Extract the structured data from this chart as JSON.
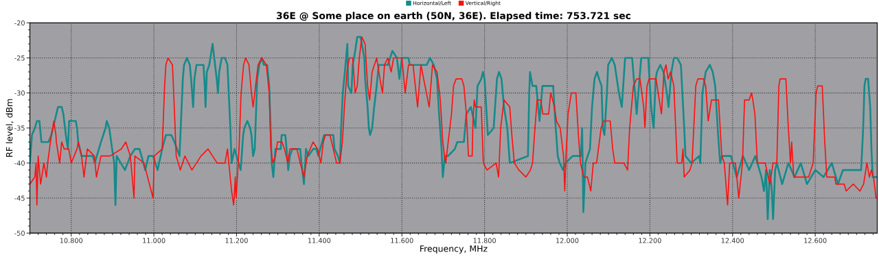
{
  "chart_data": {
    "type": "line",
    "title": "36E @ Some place on earth (50N, 36E). Elapsed time: 753.721 sec",
    "xlabel": "Frequency, MHz",
    "ylabel": "RF level, dBm",
    "xlim": [
      10.7,
      12.75
    ],
    "ylim": [
      -50,
      -20
    ],
    "xticks": [
      {
        "value": 10.8,
        "label": "10.800"
      },
      {
        "value": 11.0,
        "label": "11.000"
      },
      {
        "value": 11.2,
        "label": "11.200"
      },
      {
        "value": 11.4,
        "label": "11.400"
      },
      {
        "value": 11.6,
        "label": "11.600"
      },
      {
        "value": 11.8,
        "label": "11.800"
      },
      {
        "value": 12.0,
        "label": "12.000"
      },
      {
        "value": 12.2,
        "label": "12.200"
      },
      {
        "value": 12.4,
        "label": "12.400"
      },
      {
        "value": 12.6,
        "label": "12.600"
      }
    ],
    "yticks": [
      -50,
      -45,
      -40,
      -35,
      -30,
      -25,
      -20
    ],
    "grid": true,
    "legend": "top",
    "marker": "none",
    "line_style": "solid",
    "series": [
      {
        "name": "Horizontal/Left",
        "color": "#168a8a",
        "x": [
          10.7,
          10.705,
          10.712,
          10.717,
          10.723,
          10.728,
          10.737,
          10.745,
          10.752,
          10.764,
          10.768,
          10.777,
          10.781,
          10.787,
          10.792,
          10.795,
          10.811,
          10.814,
          10.817,
          10.825,
          10.852,
          10.857,
          10.872,
          10.883,
          10.886,
          10.892,
          10.899,
          10.904,
          10.907,
          10.91,
          10.93,
          10.943,
          10.954,
          10.965,
          10.97,
          10.979,
          10.987,
          10.998,
          11.009,
          11.02,
          11.029,
          11.042,
          11.05,
          11.056,
          11.062,
          11.07,
          11.073,
          11.08,
          11.087,
          11.09,
          11.095,
          11.098,
          11.103,
          11.12,
          11.123,
          11.125,
          11.128,
          11.134,
          11.142,
          11.148,
          11.152,
          11.155,
          11.158,
          11.164,
          11.172,
          11.178,
          11.185,
          11.188,
          11.195,
          11.205,
          11.21,
          11.216,
          11.219,
          11.226,
          11.233,
          11.236,
          11.24,
          11.244,
          11.25,
          11.255,
          11.261,
          11.266,
          11.274,
          11.279,
          11.283,
          11.285,
          11.289,
          11.294,
          11.307,
          11.309,
          11.318,
          11.321,
          11.325,
          11.329,
          11.335,
          11.354,
          11.357,
          11.363,
          11.368,
          11.374,
          11.385,
          11.393,
          11.398,
          11.407,
          11.412,
          11.434,
          11.437,
          11.445,
          11.45,
          11.453,
          11.457,
          11.462,
          11.465,
          11.468,
          11.47,
          11.478,
          11.481,
          11.487,
          11.492,
          11.5,
          11.503,
          11.509,
          11.511,
          11.517,
          11.52,
          11.523,
          11.528,
          11.533,
          11.539,
          11.544,
          11.566,
          11.577,
          11.588,
          11.594,
          11.6,
          11.616,
          11.619,
          11.66,
          11.668,
          11.677,
          11.685,
          11.69,
          11.696,
          11.699,
          11.704,
          11.712,
          11.728,
          11.734,
          11.75,
          11.756,
          11.767,
          11.778,
          11.783,
          11.792,
          11.796,
          11.8,
          11.808,
          11.822,
          11.83,
          11.835,
          11.841,
          11.847,
          11.855,
          11.861,
          11.905,
          11.908,
          11.91,
          11.913,
          11.916,
          11.925,
          11.933,
          11.94,
          11.946,
          11.966,
          11.971,
          11.977,
          11.982,
          11.99,
          11.996,
          12.013,
          12.033,
          12.036,
          12.039,
          12.044,
          12.055,
          12.06,
          12.066,
          12.072,
          12.077,
          12.083,
          12.086,
          12.09,
          12.096,
          12.099,
          12.108,
          12.115,
          12.125,
          12.132,
          12.14,
          12.157,
          12.168,
          12.179,
          12.196,
          12.203,
          12.209,
          12.214,
          12.217,
          12.225,
          12.233,
          12.241,
          12.245,
          12.252,
          12.258,
          12.266,
          12.275,
          12.283,
          12.286,
          12.3,
          12.319,
          12.322,
          12.327,
          12.335,
          12.345,
          12.352,
          12.358,
          12.365,
          12.37,
          12.374,
          12.396,
          12.41,
          12.425,
          12.44,
          12.455,
          12.47,
          12.476,
          12.481,
          12.485,
          12.49,
          12.495,
          12.498,
          12.503,
          12.507,
          12.52,
          12.535,
          12.55,
          12.565,
          12.58,
          12.6,
          12.62,
          12.64,
          12.655,
          12.667,
          12.711,
          12.716,
          12.719,
          12.722,
          12.728,
          12.733,
          12.736,
          12.739,
          12.747,
          12.75
        ],
        "values": [
          -40,
          -36,
          -35,
          -34,
          -34,
          -37,
          -37,
          -37,
          -36,
          -33,
          -32,
          -32,
          -33,
          -36,
          -38,
          -34,
          -34,
          -35,
          -37,
          -39,
          -39,
          -40,
          -37,
          -35,
          -34,
          -35,
          -38,
          -40,
          -46,
          -39,
          -41,
          -39,
          -38,
          -38,
          -39,
          -41,
          -39,
          -39,
          -41,
          -38,
          -36,
          -36,
          -37,
          -38,
          -39,
          -28,
          -26,
          -25,
          -26,
          -28,
          -32,
          -28,
          -26,
          -26,
          -29,
          -32,
          -27,
          -26,
          -23,
          -26,
          -28,
          -30,
          -27,
          -25,
          -25,
          -26,
          -35,
          -40,
          -38,
          -40,
          -41,
          -36,
          -35,
          -34,
          -35,
          -36,
          -39,
          -38,
          -28,
          -26,
          -25,
          -26,
          -26,
          -29,
          -36,
          -40,
          -42,
          -38,
          -38,
          -36,
          -36,
          -38,
          -41,
          -39,
          -38,
          -38,
          -40,
          -43,
          -38,
          -39,
          -38,
          -38,
          -39,
          -37,
          -36,
          -36,
          -38,
          -39,
          -40,
          -35,
          -30,
          -27,
          -25,
          -23,
          -29,
          -30,
          -26,
          -24,
          -22,
          -22,
          -23,
          -25,
          -28,
          -32,
          -35,
          -36,
          -35,
          -32,
          -29,
          -26,
          -26,
          -24,
          -25,
          -28,
          -25,
          -25,
          -26,
          -26,
          -25,
          -26,
          -28,
          -33,
          -38,
          -42,
          -39,
          -39,
          -38,
          -37,
          -37,
          -33,
          -32,
          -35,
          -29,
          -28,
          -27,
          -28,
          -36,
          -35,
          -28,
          -27,
          -28,
          -32,
          -35,
          -40,
          -39,
          -30,
          -27,
          -28,
          -29,
          -29,
          -34,
          -29,
          -29,
          -29,
          -34,
          -39,
          -40,
          -41,
          -40,
          -39,
          -39,
          -35,
          -47,
          -40,
          -38,
          -32,
          -28,
          -27,
          -28,
          -29,
          -35,
          -36,
          -30,
          -26,
          -25,
          -26,
          -30,
          -32,
          -25,
          -25,
          -33,
          -25,
          -25,
          -32,
          -35,
          -28,
          -27,
          -26,
          -27,
          -30,
          -32,
          -27,
          -25,
          -25,
          -26,
          -35,
          -39,
          -40,
          -39,
          -40,
          -30,
          -27,
          -26,
          -27,
          -29,
          -36,
          -40,
          -39,
          -39,
          -42,
          -39,
          -41,
          -39,
          -42,
          -44,
          -41,
          -48,
          -41,
          -44,
          -48,
          -41,
          -40,
          -43,
          -40,
          -42,
          -40,
          -43,
          -41,
          -42,
          -40,
          -43,
          -41,
          -41,
          -35,
          -29,
          -28,
          -28,
          -32,
          -38,
          -42,
          -42,
          -42
        ]
      },
      {
        "name": "Vertical/Right",
        "color": "#ff1010",
        "x": [
          10.7,
          10.712,
          10.715,
          10.717,
          10.72,
          10.726,
          10.734,
          10.74,
          10.743,
          10.752,
          10.758,
          10.763,
          10.764,
          10.772,
          10.777,
          10.783,
          10.794,
          10.8,
          10.814,
          10.817,
          10.825,
          10.831,
          10.839,
          10.856,
          10.861,
          10.872,
          10.894,
          10.921,
          10.932,
          10.943,
          10.952,
          10.954,
          10.976,
          10.998,
          11.001,
          11.02,
          11.026,
          11.029,
          11.034,
          11.045,
          11.05,
          11.054,
          11.064,
          11.075,
          11.092,
          11.114,
          11.131,
          11.142,
          11.153,
          11.172,
          11.178,
          11.183,
          11.188,
          11.193,
          11.197,
          11.198,
          11.199,
          11.206,
          11.211,
          11.217,
          11.222,
          11.23,
          11.236,
          11.24,
          11.246,
          11.252,
          11.261,
          11.272,
          11.279,
          11.283,
          11.288,
          11.294,
          11.299,
          11.31,
          11.316,
          11.324,
          11.329,
          11.346,
          11.354,
          11.363,
          11.371,
          11.385,
          11.396,
          11.404,
          11.41,
          11.415,
          11.426,
          11.434,
          11.442,
          11.45,
          11.456,
          11.462,
          11.467,
          11.473,
          11.481,
          11.487,
          11.492,
          11.497,
          11.503,
          11.511,
          11.517,
          11.522,
          11.528,
          11.539,
          11.547,
          11.553,
          11.558,
          11.566,
          11.574,
          11.58,
          11.6,
          11.608,
          11.616,
          11.627,
          11.638,
          11.646,
          11.666,
          11.674,
          11.685,
          11.693,
          11.699,
          11.703,
          11.706,
          11.712,
          11.72,
          11.725,
          11.731,
          11.745,
          11.75,
          11.756,
          11.761,
          11.77,
          11.772,
          11.775,
          11.778,
          11.792,
          11.797,
          11.806,
          11.828,
          11.834,
          11.839,
          11.847,
          11.861,
          11.866,
          11.872,
          11.883,
          11.9,
          11.911,
          11.916,
          11.922,
          11.927,
          11.936,
          11.941,
          11.955,
          11.96,
          11.969,
          11.974,
          11.983,
          11.991,
          11.994,
          11.997,
          12.002,
          12.01,
          12.021,
          12.027,
          12.032,
          12.04,
          12.049,
          12.057,
          12.063,
          12.071,
          12.082,
          12.088,
          12.104,
          12.11,
          12.115,
          12.126,
          12.137,
          12.146,
          12.151,
          12.16,
          12.168,
          12.176,
          12.185,
          12.188,
          12.193,
          12.198,
          12.215,
          12.22,
          12.228,
          12.234,
          12.239,
          12.244,
          12.25,
          12.258,
          12.266,
          12.277,
          12.28,
          12.283,
          12.297,
          12.302,
          12.311,
          12.316,
          12.33,
          12.335,
          12.341,
          12.349,
          12.366,
          12.374,
          12.38,
          12.388,
          12.393,
          12.407,
          12.415,
          12.424,
          12.429,
          12.44,
          12.446,
          12.449,
          12.454,
          12.46,
          12.479,
          12.49,
          12.498,
          12.507,
          12.512,
          12.515,
          12.529,
          12.534,
          12.54,
          12.543,
          12.548,
          12.584,
          12.595,
          12.602,
          12.606,
          12.617,
          12.623,
          12.628,
          12.647,
          12.65,
          12.67,
          12.675,
          12.692,
          12.708,
          12.717,
          12.725,
          12.731,
          12.736,
          12.741,
          12.747,
          12.75
        ],
        "values": [
          -43,
          -42,
          -40,
          -46,
          -39,
          -43,
          -40,
          -42,
          -40,
          -36,
          -34,
          -36,
          -37,
          -40,
          -37,
          -38,
          -38,
          -40,
          -38,
          -37,
          -39,
          -42,
          -38,
          -39,
          -42,
          -39,
          -39,
          -38,
          -37,
          -39,
          -45,
          -39,
          -40,
          -45,
          -39,
          -38,
          -29,
          -26,
          -25,
          -26,
          -33,
          -39,
          -41,
          -39,
          -41,
          -39,
          -38,
          -39,
          -40,
          -40,
          -38,
          -41,
          -44,
          -46,
          -42,
          -44,
          -45,
          -38,
          -30,
          -26,
          -25,
          -26,
          -30,
          -32,
          -29,
          -26,
          -25,
          -26,
          -30,
          -38,
          -40,
          -39,
          -37,
          -37,
          -38,
          -40,
          -38,
          -38,
          -40,
          -42,
          -39,
          -37,
          -38,
          -40,
          -37,
          -36,
          -36,
          -38,
          -40,
          -40,
          -37,
          -31,
          -27,
          -25,
          -25,
          -30,
          -29,
          -25,
          -22,
          -23,
          -29,
          -31,
          -27,
          -25,
          -28,
          -30,
          -26,
          -25,
          -27,
          -25,
          -25,
          -30,
          -26,
          -26,
          -32,
          -26,
          -32,
          -26,
          -27,
          -31,
          -37,
          -39,
          -40,
          -37,
          -33,
          -29,
          -28,
          -28,
          -29,
          -33,
          -39,
          -39,
          -34,
          -31,
          -32,
          -32,
          -40,
          -41,
          -40,
          -42,
          -35,
          -31,
          -32,
          -36,
          -40,
          -41,
          -42,
          -41,
          -40,
          -35,
          -31,
          -31,
          -33,
          -33,
          -30,
          -32,
          -34,
          -35,
          -39,
          -44,
          -39,
          -33,
          -30,
          -30,
          -36,
          -40,
          -42,
          -42,
          -44,
          -40,
          -40,
          -35,
          -34,
          -34,
          -38,
          -40,
          -40,
          -40,
          -41,
          -35,
          -29,
          -28,
          -28,
          -32,
          -35,
          -29,
          -28,
          -28,
          -30,
          -33,
          -27,
          -26,
          -28,
          -27,
          -29,
          -40,
          -40,
          -38,
          -42,
          -41,
          -40,
          -29,
          -28,
          -28,
          -29,
          -34,
          -31,
          -31,
          -39,
          -40,
          -46,
          -40,
          -40,
          -45,
          -40,
          -31,
          -31,
          -30,
          -31,
          -33,
          -40,
          -40,
          -43,
          -40,
          -40,
          -29,
          -28,
          -28,
          -34,
          -40,
          -37,
          -42,
          -42,
          -40,
          -30,
          -29,
          -29,
          -37,
          -42,
          -42,
          -43,
          -43,
          -44,
          -43,
          -44,
          -43,
          -40,
          -42,
          -41,
          -42,
          -45,
          -45
        ]
      }
    ]
  }
}
